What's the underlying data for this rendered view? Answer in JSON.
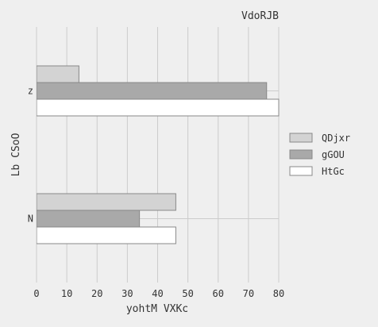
{
  "chart_data": {
    "type": "bar",
    "orientation": "horizontal",
    "title": "VdoRJB",
    "xlabel": "yohtM VXKc",
    "ylabel": "Lb CSoO",
    "categories": [
      "z",
      "N"
    ],
    "xlim": [
      0,
      80
    ],
    "xticks": [
      0,
      10,
      20,
      30,
      40,
      50,
      60,
      70,
      80
    ],
    "grid": true,
    "legend_position": "right",
    "series": [
      {
        "name": "QDjxr",
        "values": [
          14,
          46
        ],
        "color": "#d3d3d3"
      },
      {
        "name": "gGOU",
        "values": [
          76,
          34
        ],
        "color": "#a9a9a9"
      },
      {
        "name": "HtGc",
        "values": [
          80,
          46
        ],
        "color": "#ffffff"
      }
    ]
  }
}
